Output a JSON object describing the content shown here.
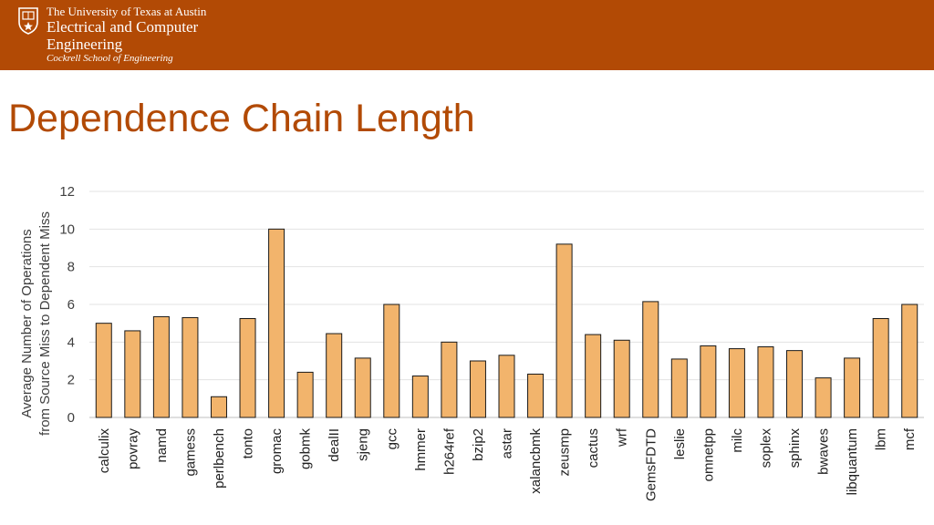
{
  "header": {
    "university": "The University of Texas at Austin",
    "department_line1": "Electrical and Computer",
    "department_line2": "Engineering",
    "school": "Cockrell School of Engineering",
    "bg_color": "#b24a05"
  },
  "slide": {
    "title": "Dependence Chain Length",
    "title_color": "#b24a05"
  },
  "chart_data": {
    "type": "bar",
    "title": "",
    "ylabel_line1": "Average Number of Operations",
    "ylabel_line2": "from Source Miss  to Dependent Miss",
    "xlabel": "",
    "ylim": [
      0,
      12
    ],
    "yticks": [
      0,
      2,
      4,
      6,
      8,
      10,
      12
    ],
    "grid": true,
    "bar_color": "#f2b46c",
    "bar_edge_color": "#1a1a1a",
    "categories": [
      "calculix",
      "povray",
      "namd",
      "gamess",
      "perlbench",
      "tonto",
      "gromac",
      "gobmk",
      "dealII",
      "sjeng",
      "gcc",
      "hmmer",
      "h264ref",
      "bzip2",
      "astar",
      "xalancbmk",
      "zeusmp",
      "cactus",
      "wrf",
      "GemsFDTD",
      "leslie",
      "omnetpp",
      "milc",
      "soplex",
      "sphinx",
      "bwaves",
      "libquantum",
      "lbm",
      "mcf"
    ],
    "values": [
      5.0,
      4.6,
      5.35,
      5.3,
      1.1,
      5.25,
      10.0,
      2.4,
      4.45,
      3.15,
      6.0,
      2.2,
      4.0,
      3.0,
      3.3,
      2.3,
      9.2,
      4.4,
      4.1,
      6.15,
      3.1,
      3.8,
      3.65,
      3.75,
      3.55,
      2.1,
      3.15,
      5.25,
      6.0
    ]
  }
}
